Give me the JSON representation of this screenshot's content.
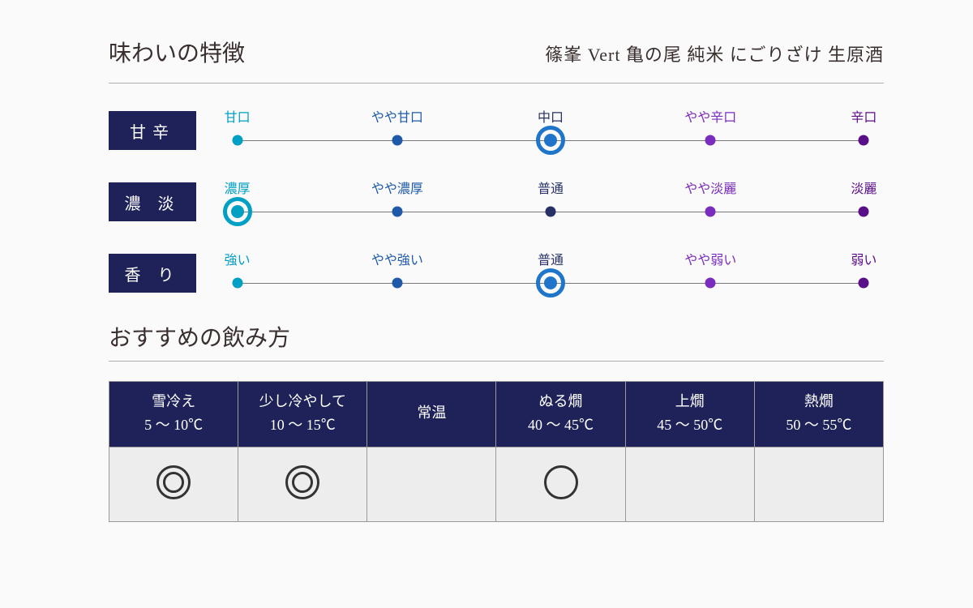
{
  "header": {
    "title": "味わいの特徴",
    "subtitle": "篠峯 Vert 亀の尾 純米 にごりざけ 生原酒"
  },
  "palette": {
    "scale_label_bg": "#1e2259",
    "point_colors": [
      "#00a0c4",
      "#1f5aa8",
      "#273168",
      "#7a2cbf",
      "#5a0f8a"
    ],
    "ring_colors": [
      "#00a0c4",
      "#137bc1",
      "#1f75c9",
      "#7a2cbf",
      "#5a0f8a"
    ]
  },
  "scales": [
    {
      "label": "甘辛",
      "points": [
        "甘口",
        "やや甘口",
        "中口",
        "やや辛口",
        "辛口"
      ],
      "selected": 2
    },
    {
      "label": "濃 淡",
      "points": [
        "濃厚",
        "やや濃厚",
        "普通",
        "やや淡麗",
        "淡麗"
      ],
      "selected": 0
    },
    {
      "label": "香 り",
      "points": [
        "強い",
        "やや強い",
        "普通",
        "やや弱い",
        "弱い"
      ],
      "selected": 2
    }
  ],
  "serving": {
    "title": "おすすめの飲み方",
    "header_bg": "#1e2259",
    "columns": [
      {
        "name": "雪冷え",
        "temp": "5 ～ 10℃"
      },
      {
        "name": "少し冷やして",
        "temp": "10 ～ 15℃"
      },
      {
        "name": "常温",
        "temp": ""
      },
      {
        "name": "ぬる燗",
        "temp": "40 ～ 45℃"
      },
      {
        "name": "上燗",
        "temp": "45 ～ 50℃"
      },
      {
        "name": "熱燗",
        "temp": "50 ～ 55℃"
      }
    ],
    "marks": [
      "double",
      "double",
      "",
      "single",
      "",
      ""
    ]
  },
  "point_positions_pct": [
    3,
    27,
    50,
    74,
    97
  ]
}
